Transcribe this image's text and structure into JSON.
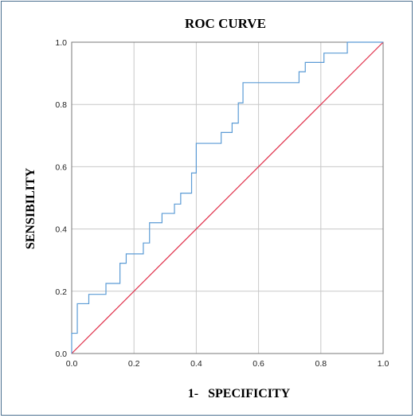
{
  "chart_data": {
    "type": "line",
    "title": "ROC CURVE",
    "xlabel": "1-   SPECIFICITY",
    "ylabel": "SENSIBILITY",
    "xlim": [
      0,
      1
    ],
    "ylim": [
      0,
      1
    ],
    "xticks": [
      "0.0",
      "0.2",
      "0.4",
      "0.6",
      "0.8",
      "1.0"
    ],
    "yticks": [
      "0.0",
      "0.2",
      "0.4",
      "0.6",
      "0.8",
      "1.0"
    ],
    "grid": true,
    "colors": {
      "roc": "#5b9bd5",
      "reference": "#e0304a",
      "grid": "#c8c8c8",
      "axis": "#7a7a7a"
    },
    "series": [
      {
        "step": true,
        "x": [
          0.0,
          0.0,
          0.018,
          0.018,
          0.055,
          0.055,
          0.11,
          0.11,
          0.155,
          0.155,
          0.175,
          0.175,
          0.23,
          0.23,
          0.25,
          0.25,
          0.29,
          0.29,
          0.33,
          0.33,
          0.35,
          0.35,
          0.385,
          0.385,
          0.4,
          0.4,
          0.48,
          0.48,
          0.515,
          0.515,
          0.535,
          0.535,
          0.55,
          0.55,
          0.73,
          0.73,
          0.75,
          0.75,
          0.81,
          0.81,
          0.885,
          0.885,
          1.0
        ],
        "y": [
          0.0,
          0.065,
          0.065,
          0.16,
          0.16,
          0.19,
          0.19,
          0.225,
          0.225,
          0.29,
          0.29,
          0.32,
          0.32,
          0.355,
          0.355,
          0.42,
          0.42,
          0.45,
          0.45,
          0.48,
          0.48,
          0.515,
          0.515,
          0.58,
          0.58,
          0.675,
          0.675,
          0.71,
          0.71,
          0.74,
          0.74,
          0.805,
          0.805,
          0.87,
          0.87,
          0.905,
          0.905,
          0.935,
          0.935,
          0.965,
          0.965,
          1.0,
          1.0
        ]
      },
      {
        "x": [
          0.0,
          1.0
        ],
        "y": [
          0.0,
          1.0
        ]
      }
    ]
  }
}
